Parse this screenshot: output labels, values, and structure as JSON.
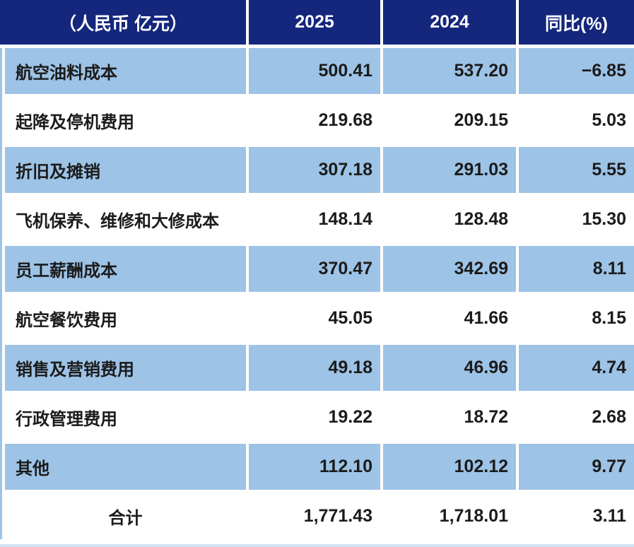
{
  "table": {
    "header": {
      "unit": "（人民币 亿元）",
      "col2025": "2025",
      "col2024": "2024",
      "yoy": "同比(%)"
    },
    "rows": [
      {
        "label": "航空油料成本",
        "v2025": "500.41",
        "v2024": "537.20",
        "yoy": "−6.85",
        "shaded": true
      },
      {
        "label": "起降及停机费用",
        "v2025": "219.68",
        "v2024": "209.15",
        "yoy": "5.03",
        "shaded": false
      },
      {
        "label": "折旧及摊销",
        "v2025": "307.18",
        "v2024": "291.03",
        "yoy": "5.55",
        "shaded": true
      },
      {
        "label": "飞机保养、维修和大修成本",
        "v2025": "148.14",
        "v2024": "128.48",
        "yoy": "15.30",
        "shaded": false
      },
      {
        "label": "员工薪酬成本",
        "v2025": "370.47",
        "v2024": "342.69",
        "yoy": "8.11",
        "shaded": true
      },
      {
        "label": "航空餐饮费用",
        "v2025": "45.05",
        "v2024": "41.66",
        "yoy": "8.15",
        "shaded": false
      },
      {
        "label": "销售及营销费用",
        "v2025": "49.18",
        "v2024": "46.96",
        "yoy": "4.74",
        "shaded": true
      },
      {
        "label": "行政管理费用",
        "v2025": "19.22",
        "v2024": "18.72",
        "yoy": "2.68",
        "shaded": false
      },
      {
        "label": "其他",
        "v2025": "112.10",
        "v2024": "102.12",
        "yoy": "9.77",
        "shaded": true
      }
    ],
    "total": {
      "label": "合计",
      "v2025": "1,771.43",
      "v2024": "1,718.01",
      "yoy": "3.11"
    }
  },
  "colors": {
    "header_bg": "#14277d",
    "header_text": "#ffffff",
    "shaded_row_bg": "#9dc3e6",
    "plain_row_bg": "#ffffff",
    "body_text": "#1b1b1b"
  },
  "chart_data": {
    "type": "table",
    "title": "营业成本明细（人民币 亿元）",
    "columns": [
      "（人民币 亿元）",
      "2025",
      "2024",
      "同比(%)"
    ],
    "rows": [
      [
        "航空油料成本",
        500.41,
        537.2,
        -6.85
      ],
      [
        "起降及停机费用",
        219.68,
        209.15,
        5.03
      ],
      [
        "折旧及摊销",
        307.18,
        291.03,
        5.55
      ],
      [
        "飞机保养、维修和大修成本",
        148.14,
        128.48,
        15.3
      ],
      [
        "员工薪酬成本",
        370.47,
        342.69,
        8.11
      ],
      [
        "航空餐饮费用",
        45.05,
        41.66,
        8.15
      ],
      [
        "销售及营销费用",
        49.18,
        46.96,
        4.74
      ],
      [
        "行政管理费用",
        19.22,
        18.72,
        2.68
      ],
      [
        "其他",
        112.1,
        102.12,
        9.77
      ],
      [
        "合计",
        1771.43,
        1718.01,
        3.11
      ]
    ],
    "layout": {
      "header_style": "dark-navy, white bold text, centered",
      "body_style": "alternating light-blue (#9dc3e6) and white rows, bold text",
      "first_column_align": "left (total row centered)",
      "number_align": "right"
    }
  }
}
